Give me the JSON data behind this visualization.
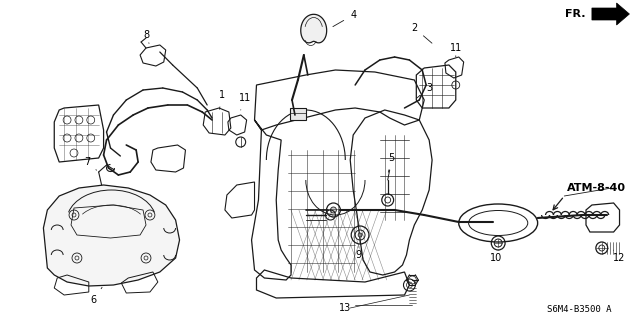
{
  "diagram_code": "S6M4-B3500 A",
  "atm_label": "ATM-8-40",
  "fr_label": "FR.",
  "background_color": "#ffffff",
  "line_color": "#1a1a1a",
  "text_color": "#000000",
  "fig_width": 6.4,
  "fig_height": 3.19,
  "dpi": 100,
  "image_b64": ""
}
